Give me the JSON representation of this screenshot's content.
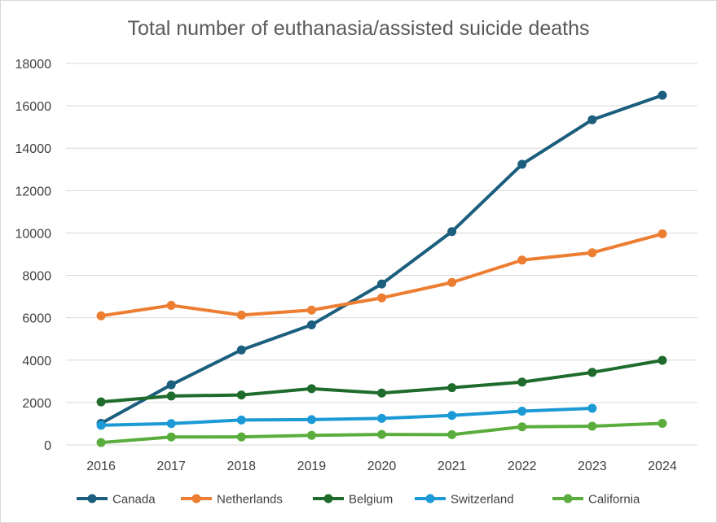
{
  "chart_data": {
    "type": "line",
    "title": "Total number of euthanasia/assisted suicide deaths",
    "xlabel": "",
    "ylabel": "",
    "categories": [
      "2016",
      "2017",
      "2018",
      "2019",
      "2020",
      "2021",
      "2022",
      "2023",
      "2024"
    ],
    "ylim": [
      0,
      18000
    ],
    "yticks": [
      0,
      2000,
      4000,
      6000,
      8000,
      10000,
      12000,
      14000,
      16000,
      18000
    ],
    "ytick_labels": [
      "0",
      "2000",
      "4000",
      "6000",
      "8000",
      "10000",
      "12000",
      "14000",
      "16000",
      "18000"
    ],
    "grid": true,
    "legend_position": "bottom",
    "series": [
      {
        "name": "Canada",
        "color": "#1b5e7d",
        "values": [
          1018,
          2838,
          4480,
          5665,
          7595,
          10064,
          13241,
          15343,
          16499
        ]
      },
      {
        "name": "Netherlands",
        "color": "#ed7d31",
        "values": [
          6091,
          6585,
          6126,
          6361,
          6938,
          7666,
          8720,
          9068,
          9958
        ]
      },
      {
        "name": "Belgium",
        "color": "#1e6b2c",
        "values": [
          2028,
          2309,
          2357,
          2655,
          2445,
          2700,
          2966,
          3423,
          3991
        ]
      },
      {
        "name": "Switzerland",
        "color": "#1b9ad6",
        "values": [
          928,
          1009,
          1176,
          1196,
          1251,
          1391,
          1594,
          1729,
          null
        ]
      },
      {
        "name": "California",
        "color": "#5aad3c",
        "values": [
          111,
          374,
          377,
          452,
          495,
          486,
          853,
          884,
          1017
        ]
      }
    ]
  }
}
